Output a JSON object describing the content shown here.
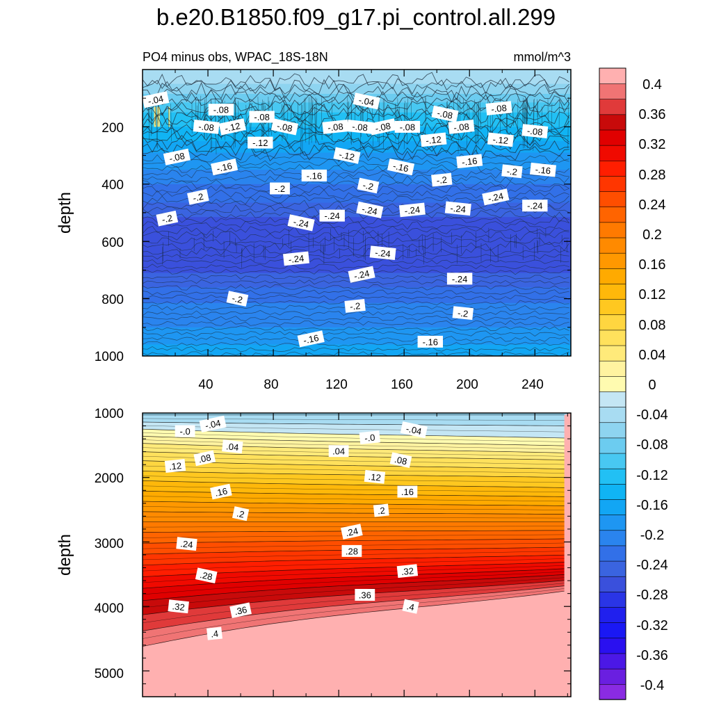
{
  "chart_data": {
    "type": "contour",
    "title": "b.e20.B1850.f09_g17.pi_control.all.299",
    "subtitle": "PO4 minus obs, WPAC_18S-18N",
    "units": "mmol/m^3",
    "xlabel": "",
    "x_ticks": [
      "40",
      "80",
      "120",
      "160",
      "200",
      "240"
    ],
    "colorbar": {
      "levels": [
        "0.4",
        "0.36",
        "0.32",
        "0.28",
        "0.24",
        "0.2",
        "0.16",
        "0.12",
        "0.08",
        "0.04",
        "0",
        "-0.04",
        "-0.08",
        "-0.12",
        "-0.16",
        "-0.2",
        "-0.24",
        "-0.28",
        "-0.32",
        "-0.36",
        "-0.4"
      ],
      "level_values": [
        -0.4,
        -0.38,
        -0.36,
        -0.34,
        -0.32,
        -0.3,
        -0.28,
        -0.26,
        -0.24,
        -0.22,
        -0.2,
        -0.18,
        -0.16,
        -0.14,
        -0.12,
        -0.1,
        -0.08,
        -0.06,
        -0.04,
        -0.02,
        0,
        0.02,
        0.04,
        0.06,
        0.08,
        0.1,
        0.12,
        0.14,
        0.16,
        0.18,
        0.2,
        0.22,
        0.24,
        0.26,
        0.28,
        0.3,
        0.32,
        0.34,
        0.36,
        0.38,
        0.4
      ],
      "colors": [
        "#8a2be2",
        "#6a1fe0",
        "#4b18e6",
        "#2a10f0",
        "#1a18f4",
        "#2020ee",
        "#2a35e6",
        "#3a50dc",
        "#3a64e0",
        "#3270e8",
        "#2a84ee",
        "#1e96f2",
        "#12a6f4",
        "#10b4f4",
        "#22c0f4",
        "#48c8f2",
        "#6cccf0",
        "#8ed4f0",
        "#a8dcf2",
        "#c4e6f4",
        "#fffbb0",
        "#fff3a0",
        "#ffea7a",
        "#ffe15c",
        "#ffd640",
        "#ffc820",
        "#ffb80a",
        "#ffaa00",
        "#ff9800",
        "#ff8a00",
        "#ff7a00",
        "#ff6400",
        "#ff4e00",
        "#ff3600",
        "#ff1e00",
        "#f00a00",
        "#e00000",
        "#c80a0a",
        "#e03a3a",
        "#f07474",
        "#ffb0b0"
      ]
    },
    "panels": [
      {
        "name": "upper",
        "ylabel": "depth",
        "xlim": [
          0,
          262
        ],
        "ylim": [
          0,
          1000
        ],
        "y_ticks": [
          "200",
          "400",
          "600",
          "800",
          "1000"
        ],
        "profile": [
          [
            0,
            -0.02
          ],
          [
            50,
            -0.04
          ],
          [
            100,
            -0.07
          ],
          [
            150,
            -0.1
          ],
          [
            200,
            -0.12
          ],
          [
            250,
            -0.14
          ],
          [
            300,
            -0.165
          ],
          [
            350,
            -0.18
          ],
          [
            400,
            -0.2
          ],
          [
            450,
            -0.215
          ],
          [
            500,
            -0.235
          ],
          [
            550,
            -0.25
          ],
          [
            600,
            -0.255
          ],
          [
            650,
            -0.25
          ],
          [
            700,
            -0.245
          ],
          [
            750,
            -0.225
          ],
          [
            800,
            -0.205
          ],
          [
            850,
            -0.19
          ],
          [
            900,
            -0.18
          ],
          [
            950,
            -0.165
          ],
          [
            1000,
            -0.145
          ]
        ],
        "contour_labels": [
          {
            "text": "-.04",
            "x": 8,
            "depth": 105
          },
          {
            "text": "-.08",
            "x": 48,
            "depth": 140
          },
          {
            "text": "-.04",
            "x": 137,
            "depth": 110
          },
          {
            "text": "-.08",
            "x": 218,
            "depth": 135
          },
          {
            "text": "-.08",
            "x": 39,
            "depth": 200
          },
          {
            "text": "-.12",
            "x": 55,
            "depth": 200
          },
          {
            "text": "-.08",
            "x": 73,
            "depth": 165
          },
          {
            "text": "-.08",
            "x": 87,
            "depth": 200
          },
          {
            "text": "-.08",
            "x": 118,
            "depth": 200
          },
          {
            "text": "-.08",
            "x": 133,
            "depth": 200
          },
          {
            "text": "-.08",
            "x": 147,
            "depth": 200
          },
          {
            "text": "-.08",
            "x": 162,
            "depth": 200
          },
          {
            "text": "-.08",
            "x": 185,
            "depth": 155
          },
          {
            "text": "-.08",
            "x": 195,
            "depth": 200
          },
          {
            "text": "-.08",
            "x": 240,
            "depth": 215
          },
          {
            "text": "-.08",
            "x": 21,
            "depth": 305
          },
          {
            "text": "-.12",
            "x": 72,
            "depth": 255
          },
          {
            "text": "-.12",
            "x": 125,
            "depth": 300
          },
          {
            "text": "-.12",
            "x": 178,
            "depth": 245
          },
          {
            "text": "-.12",
            "x": 219,
            "depth": 245
          },
          {
            "text": "-.16",
            "x": 50,
            "depth": 340
          },
          {
            "text": "-.16",
            "x": 105,
            "depth": 370
          },
          {
            "text": "-.16",
            "x": 158,
            "depth": 340
          },
          {
            "text": "-.16",
            "x": 200,
            "depth": 320
          },
          {
            "text": "-.16",
            "x": 245,
            "depth": 350
          },
          {
            "text": "-.2",
            "x": 34,
            "depth": 445
          },
          {
            "text": "-.2",
            "x": 84,
            "depth": 415
          },
          {
            "text": "-.2",
            "x": 138,
            "depth": 405
          },
          {
            "text": "-.2",
            "x": 183,
            "depth": 385
          },
          {
            "text": "-.2",
            "x": 226,
            "depth": 355
          },
          {
            "text": "-.2",
            "x": 15,
            "depth": 520
          },
          {
            "text": "-.24",
            "x": 116,
            "depth": 510
          },
          {
            "text": "-.24",
            "x": 139,
            "depth": 490
          },
          {
            "text": "-.24",
            "x": 165,
            "depth": 490
          },
          {
            "text": "-.24",
            "x": 193,
            "depth": 485
          },
          {
            "text": "-.24",
            "x": 216,
            "depth": 445
          },
          {
            "text": "-.24",
            "x": 240,
            "depth": 475
          },
          {
            "text": "-.24",
            "x": 97,
            "depth": 535
          },
          {
            "text": "-.24",
            "x": 94,
            "depth": 660
          },
          {
            "text": "-.24",
            "x": 147,
            "depth": 640
          },
          {
            "text": "-.24",
            "x": 134,
            "depth": 715
          },
          {
            "text": "-.24",
            "x": 194,
            "depth": 730
          },
          {
            "text": "-.2",
            "x": 58,
            "depth": 800
          },
          {
            "text": "-.2",
            "x": 130,
            "depth": 825
          },
          {
            "text": "-.2",
            "x": 196,
            "depth": 850
          },
          {
            "text": "-.16",
            "x": 103,
            "depth": 940
          },
          {
            "text": "-.16",
            "x": 176,
            "depth": 950
          }
        ]
      },
      {
        "name": "lower",
        "ylabel": "depth",
        "xlim": [
          0,
          262
        ],
        "ylim": [
          1000,
          5400
        ],
        "y_ticks": [
          "1000",
          "2000",
          "3000",
          "4000",
          "5000"
        ],
        "contour_levels": [
          -0.04,
          -0.02,
          0,
          0.02,
          0.04,
          0.06,
          0.08,
          0.1,
          0.12,
          0.14,
          0.16,
          0.18,
          0.2,
          0.22,
          0.24,
          0.26,
          0.28,
          0.3,
          0.32,
          0.34,
          0.36,
          0.38,
          0.4
        ],
        "contour_depth_left": [
          1030,
          1140,
          1250,
          1360,
          1470,
          1600,
          1740,
          1900,
          2050,
          2210,
          2370,
          2530,
          2690,
          2850,
          3020,
          3190,
          3360,
          3540,
          3720,
          3910,
          4130,
          4380,
          4620
        ],
        "contour_depth_right": [
          1030,
          1200,
          1390,
          1510,
          1620,
          1730,
          1870,
          2000,
          2160,
          2300,
          2440,
          2570,
          2690,
          2820,
          2950,
          3080,
          3200,
          3310,
          3410,
          3500,
          3590,
          3670,
          3750
        ],
        "contour_labels": [
          {
            "text": "-.04",
            "x": 43,
            "depth": 1170
          },
          {
            "text": "-.0",
            "x": 26,
            "depth": 1280
          },
          {
            "text": "-.04",
            "x": 166,
            "depth": 1260
          },
          {
            "text": "-.0",
            "x": 139,
            "depth": 1380
          },
          {
            "text": ".04",
            "x": 55,
            "depth": 1520
          },
          {
            "text": ".08",
            "x": 38,
            "depth": 1700
          },
          {
            "text": ".04",
            "x": 120,
            "depth": 1590
          },
          {
            "text": ".08",
            "x": 158,
            "depth": 1730
          },
          {
            "text": ".12",
            "x": 20,
            "depth": 1820
          },
          {
            "text": ".12",
            "x": 142,
            "depth": 1990
          },
          {
            "text": ".16",
            "x": 48,
            "depth": 2220
          },
          {
            "text": ".16",
            "x": 162,
            "depth": 2220
          },
          {
            "text": ".2",
            "x": 60,
            "depth": 2560
          },
          {
            "text": ".2",
            "x": 146,
            "depth": 2510
          },
          {
            "text": ".24",
            "x": 27,
            "depth": 3030
          },
          {
            "text": ".24",
            "x": 128,
            "depth": 2840
          },
          {
            "text": ".28",
            "x": 128,
            "depth": 3140
          },
          {
            "text": ".28",
            "x": 39,
            "depth": 3520
          },
          {
            "text": ".32",
            "x": 162,
            "depth": 3450
          },
          {
            "text": ".32",
            "x": 22,
            "depth": 4000
          },
          {
            "text": ".36",
            "x": 60,
            "depth": 4060
          },
          {
            "text": ".36",
            "x": 136,
            "depth": 3820
          },
          {
            "text": ".4",
            "x": 164,
            "depth": 4000
          },
          {
            "text": ".4",
            "x": 44,
            "depth": 4420
          }
        ]
      }
    ]
  }
}
